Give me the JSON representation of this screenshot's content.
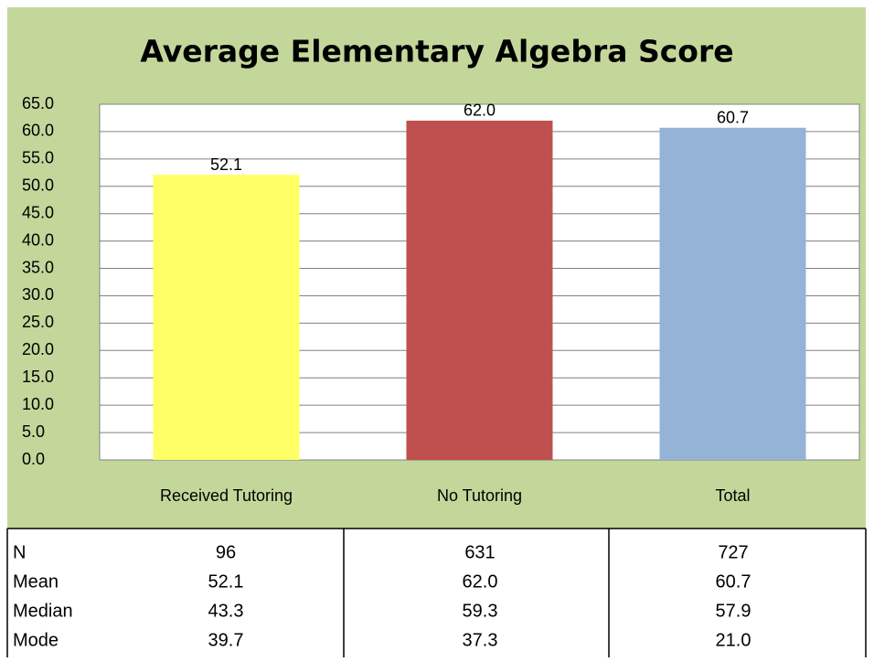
{
  "chart_data": {
    "type": "bar",
    "title": "Average Elementary Algebra Score",
    "categories": [
      "Received Tutoring",
      "No Tutoring",
      "Total"
    ],
    "values": [
      52.1,
      62.0,
      60.7
    ],
    "value_labels": [
      "52.1",
      "62.0",
      "60.7"
    ],
    "colors": [
      "#ffff66",
      "#c0504d",
      "#95b3d7"
    ],
    "ylim": [
      0,
      65
    ],
    "yticks": [
      {
        "value": 0,
        "label": "0.0"
      },
      {
        "value": 5,
        "label": "5.0"
      },
      {
        "value": 10,
        "label": "10.0"
      },
      {
        "value": 15,
        "label": "15.0"
      },
      {
        "value": 20,
        "label": "20.0"
      },
      {
        "value": 25,
        "label": "25.0"
      },
      {
        "value": 30,
        "label": "30.0"
      },
      {
        "value": 35,
        "label": "35.0"
      },
      {
        "value": 40,
        "label": "40.0"
      },
      {
        "value": 45,
        "label": "45.0"
      },
      {
        "value": 50,
        "label": "50.0"
      },
      {
        "value": 55,
        "label": "55.0"
      },
      {
        "value": 60,
        "label": "60.0"
      },
      {
        "value": 65,
        "label": "65.0"
      }
    ],
    "grid": true
  },
  "table": {
    "rows": [
      [
        "N",
        "96",
        "631",
        "727"
      ],
      [
        "Mean",
        "52.1",
        "62.0",
        "60.7"
      ],
      [
        "Median",
        "43.3",
        "59.3",
        "57.9"
      ],
      [
        "Mode",
        "39.7",
        "37.3",
        "21.0"
      ]
    ]
  }
}
